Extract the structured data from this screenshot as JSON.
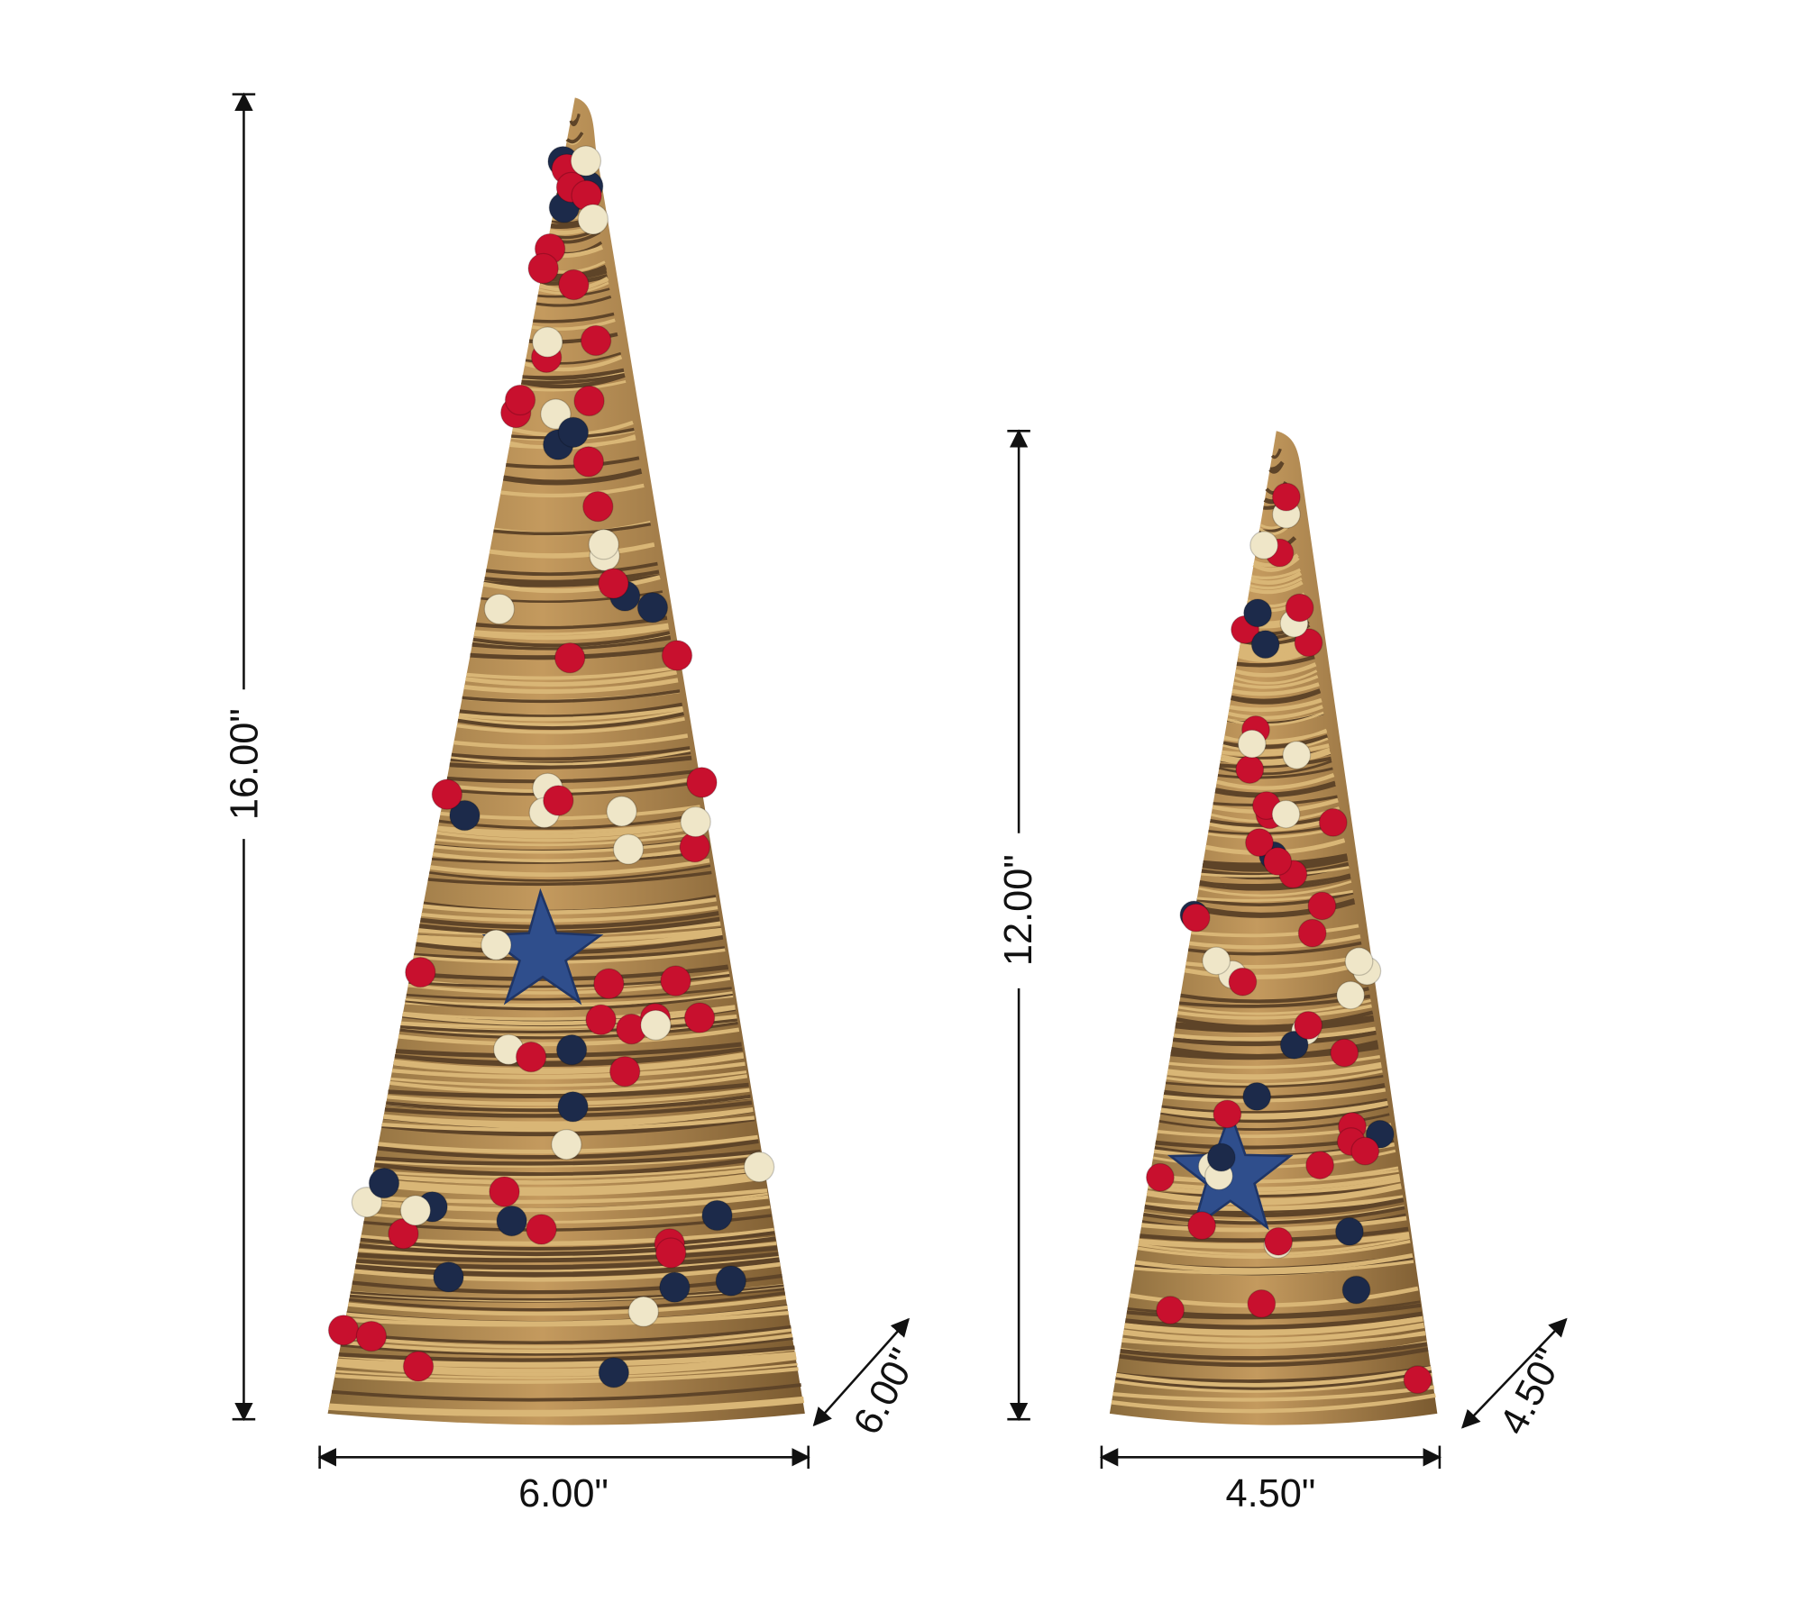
{
  "large_tree": {
    "height": "16.00\"",
    "width": "6.00\"",
    "depth": "6.00\""
  },
  "small_tree": {
    "height": "12.00\"",
    "width": "4.50\"",
    "depth": "4.50\""
  }
}
